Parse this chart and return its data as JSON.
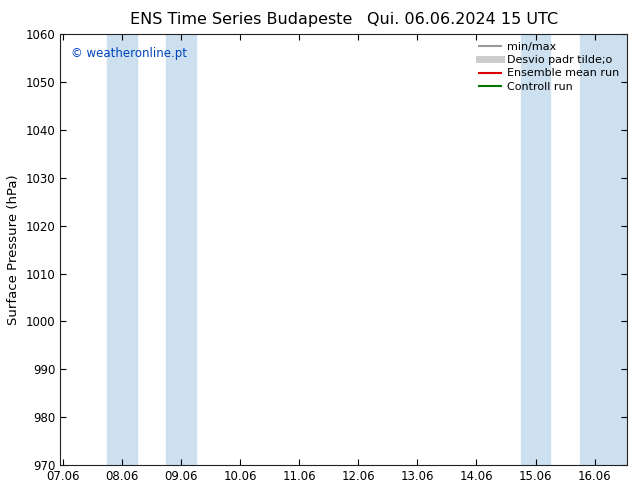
{
  "title_left": "ENS Time Series Budapeste",
  "title_right": "Qui. 06.06.2024 15 UTC",
  "ylabel": "Surface Pressure (hPa)",
  "ylim": [
    970,
    1060
  ],
  "yticks": [
    970,
    980,
    990,
    1000,
    1010,
    1020,
    1030,
    1040,
    1050,
    1060
  ],
  "xtick_labels": [
    "07.06",
    "08.06",
    "09.06",
    "10.06",
    "11.06",
    "12.06",
    "13.06",
    "14.06",
    "15.06",
    "16.06"
  ],
  "xtick_positions": [
    0,
    1,
    2,
    3,
    4,
    5,
    6,
    7,
    8,
    9
  ],
  "xlim": [
    -0.05,
    9.55
  ],
  "shaded_bands": [
    {
      "x_start": 0.75,
      "x_end": 1.25,
      "color": "#cce0f0"
    },
    {
      "x_start": 1.75,
      "x_end": 2.25,
      "color": "#cce0f0"
    },
    {
      "x_start": 7.75,
      "x_end": 8.25,
      "color": "#cce0f0"
    },
    {
      "x_start": 8.75,
      "x_end": 9.25,
      "color": "#cce0f0"
    },
    {
      "x_start": 9.25,
      "x_end": 9.55,
      "color": "#cce0f0"
    }
  ],
  "watermark_text": "© weatheronline.pt",
  "watermark_color": "#0044bb",
  "background_color": "#ffffff",
  "legend_items": [
    {
      "label": "min/max",
      "color": "#999999",
      "lw": 1.5,
      "style": "solid"
    },
    {
      "label": "Desvio padr tilde;o",
      "color": "#cccccc",
      "lw": 5,
      "style": "solid"
    },
    {
      "label": "Ensemble mean run",
      "color": "#dd0000",
      "lw": 1.5,
      "style": "solid"
    },
    {
      "label": "Controll run",
      "color": "#007700",
      "lw": 1.5,
      "style": "solid"
    }
  ],
  "title_fontsize": 11.5,
  "tick_fontsize": 8.5,
  "ylabel_fontsize": 9.5,
  "legend_fontsize": 8
}
